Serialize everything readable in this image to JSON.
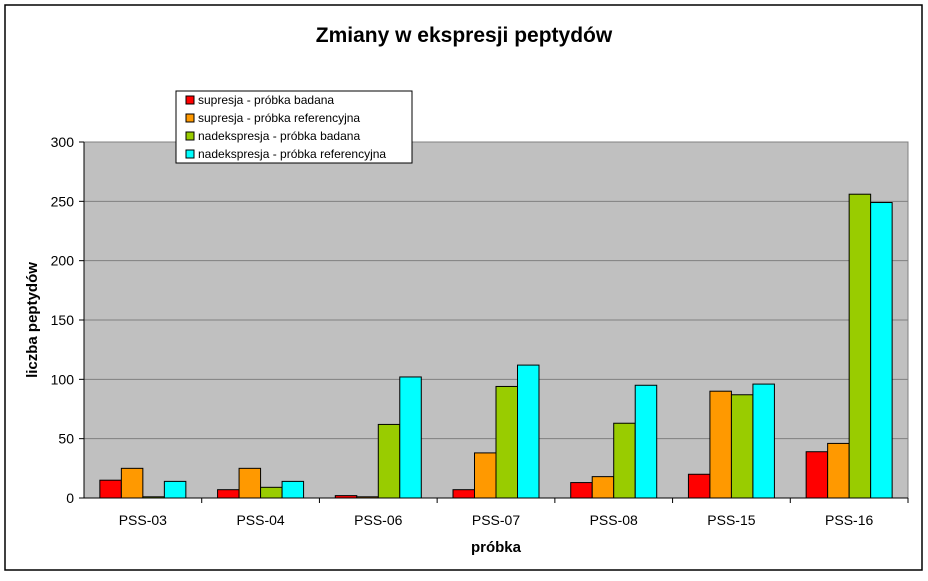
{
  "chart_data": {
    "type": "bar",
    "title": "Zmiany w ekspresji peptydów",
    "xlabel": "próbka",
    "ylabel": "liczba peptydów",
    "categories": [
      "PSS-03",
      "PSS-04",
      "PSS-06",
      "PSS-07",
      "PSS-08",
      "PSS-15",
      "PSS-16"
    ],
    "ylim": [
      0,
      300
    ],
    "yticks": [
      0,
      50,
      100,
      150,
      200,
      250,
      300
    ],
    "grid": true,
    "legend_position": "top-left",
    "plot_background": "#c0c0c0",
    "series": [
      {
        "name": "supresja - próbka badana",
        "color": "#ff0000",
        "values": [
          15,
          7,
          2,
          7,
          13,
          20,
          39
        ]
      },
      {
        "name": "supresja - próbka referencyjna",
        "color": "#ff9900",
        "values": [
          25,
          25,
          1,
          38,
          18,
          90,
          46
        ]
      },
      {
        "name": "nadekspresja - próbka badana",
        "color": "#99cc00",
        "values": [
          1,
          9,
          62,
          94,
          63,
          87,
          256
        ]
      },
      {
        "name": "nadekspresja - próbka referencyjna",
        "color": "#00ffff",
        "values": [
          14,
          14,
          102,
          112,
          95,
          96,
          249
        ]
      }
    ]
  }
}
